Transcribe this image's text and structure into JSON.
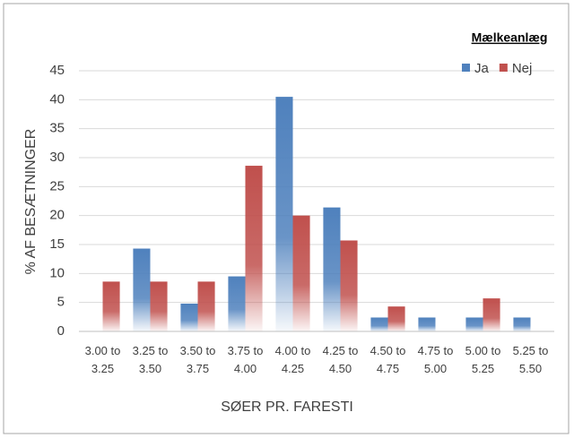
{
  "chart_data": {
    "type": "bar",
    "x_label": "SØER PR. FARESTI",
    "y_label": "% AF BESÆTNINGER",
    "legend_title": "Mælkeanlæg",
    "categories": [
      "3.00 to 3.25",
      "3.25 to 3.50",
      "3.50 to 3.75",
      "3.75 to 4.00",
      "4.00 to 4.25",
      "4.25 to 4.50",
      "4.50 to 4.75",
      "4.75 to 5.00",
      "5.00 to 5.25",
      "5.25 to 5.50"
    ],
    "series": [
      {
        "name": "Ja",
        "color": "#4f81bd",
        "values": [
          0,
          14.3,
          4.8,
          9.5,
          40.5,
          21.4,
          2.4,
          2.4,
          2.4,
          2.4
        ]
      },
      {
        "name": "Nej",
        "color": "#c0504d",
        "values": [
          8.6,
          8.6,
          8.6,
          28.6,
          20,
          15.7,
          4.3,
          0,
          5.7,
          0
        ]
      }
    ],
    "ylim": [
      0,
      45
    ],
    "yticks": [
      0,
      5,
      10,
      15,
      20,
      25,
      30,
      35,
      40,
      45
    ],
    "grid": true,
    "legend": "top-right"
  }
}
